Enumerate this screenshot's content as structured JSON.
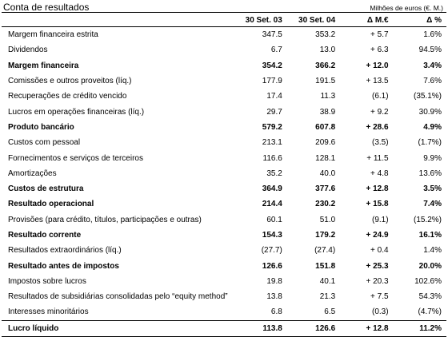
{
  "header": {
    "title": "Conta de resultados",
    "unit": "Milhões de euros (€. M.)"
  },
  "table": {
    "columns": [
      "",
      "30 Set. 03",
      "30 Set. 04",
      "Δ M.€",
      "Δ %"
    ],
    "rows": [
      {
        "label": "Margem financeira estrita",
        "bold": false,
        "values": [
          "347.5",
          "353.2",
          "+ 5.7",
          "1.6%"
        ]
      },
      {
        "label": "Dividendos",
        "bold": false,
        "values": [
          "6.7",
          "13.0",
          "+ 6.3",
          "94.5%"
        ]
      },
      {
        "label": "Margem financeira",
        "bold": true,
        "values": [
          "354.2",
          "366.2",
          "+ 12.0",
          "3.4%"
        ]
      },
      {
        "label": "Comissões e outros proveitos (líq.)",
        "bold": false,
        "values": [
          "177.9",
          "191.5",
          "+ 13.5",
          "7.6%"
        ]
      },
      {
        "label": "Recuperações de crédito vencido",
        "bold": false,
        "values": [
          "17.4",
          "11.3",
          "(6.1)",
          "(35.1%)"
        ]
      },
      {
        "label": "Lucros em operações financeiras (líq.)",
        "bold": false,
        "values": [
          "29.7",
          "38.9",
          "+ 9.2",
          "30.9%"
        ]
      },
      {
        "label": "Produto bancário",
        "bold": true,
        "values": [
          "579.2",
          "607.8",
          "+ 28.6",
          "4.9%"
        ]
      },
      {
        "label": "Custos com pessoal",
        "bold": false,
        "values": [
          "213.1",
          "209.6",
          "(3.5)",
          "(1.7%)"
        ]
      },
      {
        "label": "Fornecimentos e serviços de terceiros",
        "bold": false,
        "values": [
          "116.6",
          "128.1",
          "+ 11.5",
          "9.9%"
        ]
      },
      {
        "label": "Amortizações",
        "bold": false,
        "values": [
          "35.2",
          "40.0",
          "+ 4.8",
          "13.6%"
        ]
      },
      {
        "label": "Custos de estrutura",
        "bold": true,
        "values": [
          "364.9",
          "377.6",
          "+ 12.8",
          "3.5%"
        ]
      },
      {
        "label": "Resultado operacional",
        "bold": true,
        "values": [
          "214.4",
          "230.2",
          "+ 15.8",
          "7.4%"
        ]
      },
      {
        "label": "Provisões (para crédito, títulos, participações e outras)",
        "bold": false,
        "values": [
          "60.1",
          "51.0",
          "(9.1)",
          "(15.2%)"
        ]
      },
      {
        "label": "Resultado corrente",
        "bold": true,
        "values": [
          "154.3",
          "179.2",
          "+ 24.9",
          "16.1%"
        ]
      },
      {
        "label": "Resultados extraordinários (líq.)",
        "bold": false,
        "values": [
          "(27.7)",
          "(27.4)",
          "+ 0.4",
          "1.4%"
        ]
      },
      {
        "label": "Resultado antes de impostos",
        "bold": true,
        "values": [
          "126.6",
          "151.8",
          "+ 25.3",
          "20.0%"
        ]
      },
      {
        "label": "Impostos sobre lucros",
        "bold": false,
        "values": [
          "19.8",
          "40.1",
          "+ 20.3",
          "102.6%"
        ]
      },
      {
        "label": "Resultados de subsidiárias consolidadas pelo “equity method”",
        "bold": false,
        "values": [
          "13.8",
          "21.3",
          "+ 7.5",
          "54.3%"
        ]
      },
      {
        "label": "Interesses minoritários",
        "bold": false,
        "values": [
          "6.8",
          "6.5",
          "(0.3)",
          "(4.7%)"
        ]
      },
      {
        "label": "Lucro líquido",
        "bold": true,
        "values": [
          "113.8",
          "126.6",
          "+ 12.8",
          "11.2%"
        ]
      }
    ]
  }
}
